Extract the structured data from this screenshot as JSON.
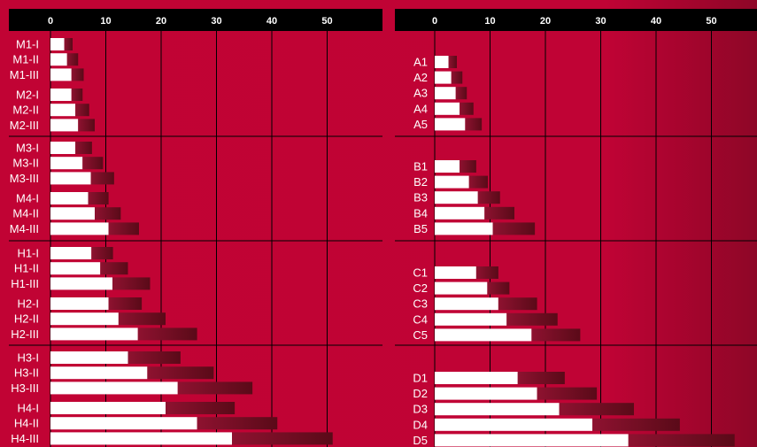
{
  "colors": {
    "background": "#c10334",
    "background_edge": "#8a0425",
    "axis_bar": "#000000",
    "tick_text": "#ffffff",
    "bar_main": "#ffffff",
    "bar_extension_start": "#8e1230",
    "bar_extension_end": "#5a0a18",
    "gridline": "#000000"
  },
  "chart_data": [
    {
      "type": "bar",
      "orientation": "horizontal",
      "stacked": true,
      "xlim": [
        0,
        60
      ],
      "ticks": [
        0,
        10,
        20,
        30,
        40,
        50
      ],
      "tick_labels": [
        "0",
        "10",
        "20",
        "30",
        "40",
        "50"
      ],
      "grid": true,
      "groups": [
        {
          "categories": [
            "M1-I",
            "M1-II",
            "M1-III"
          ],
          "base": [
            2.5,
            3,
            3.8
          ],
          "extension": [
            1.5,
            2,
            2.2
          ]
        },
        {
          "categories": [
            "M2-I",
            "M2-II",
            "M2-III"
          ],
          "base": [
            3.8,
            4.5,
            5
          ],
          "extension": [
            2,
            2.5,
            3
          ]
        },
        {
          "categories": [
            "M3-I",
            "M3-II",
            "M3-III"
          ],
          "base": [
            4.5,
            5.8,
            7.3
          ],
          "extension": [
            3,
            3.7,
            4.2
          ]
        },
        {
          "categories": [
            "M4-I",
            "M4-II",
            "M4-III"
          ],
          "base": [
            6.8,
            8,
            10.5
          ],
          "extension": [
            3.7,
            4.7,
            5.5
          ]
        },
        {
          "categories": [
            "H1-I",
            "H1-II",
            "H1-III"
          ],
          "base": [
            7.4,
            9,
            11.2
          ],
          "extension": [
            3.9,
            5,
            6.8
          ]
        },
        {
          "categories": [
            "H2-I",
            "H2-II",
            "H2-III"
          ],
          "base": [
            10.5,
            12.3,
            15.8
          ],
          "extension": [
            6,
            8.5,
            10.7
          ]
        },
        {
          "categories": [
            "H3-I",
            "H3-II",
            "H3-III"
          ],
          "base": [
            14,
            17.5,
            23
          ],
          "extension": [
            9.5,
            12,
            13.5
          ]
        },
        {
          "categories": [
            "H4-I",
            "H4-II",
            "H4-III"
          ],
          "base": [
            20.8,
            26.5,
            32.8
          ],
          "extension": [
            12.5,
            14.5,
            18.2
          ]
        }
      ]
    },
    {
      "type": "bar",
      "orientation": "horizontal",
      "stacked": true,
      "xlim": [
        0,
        60
      ],
      "ticks": [
        0,
        10,
        20,
        30,
        40,
        50
      ],
      "tick_labels": [
        "0",
        "10",
        "20",
        "30",
        "40",
        "50"
      ],
      "grid": true,
      "groups": [
        {
          "categories": [
            "A1",
            "A2",
            "A3",
            "A4",
            "A5"
          ],
          "base": [
            2.5,
            3,
            3.8,
            4.5,
            5.5
          ],
          "extension": [
            1.5,
            2,
            2,
            2.5,
            3
          ]
        },
        {
          "categories": [
            "B1",
            "B2",
            "B3",
            "B4",
            "B5"
          ],
          "base": [
            4.5,
            6.2,
            7.8,
            9,
            10.5
          ],
          "extension": [
            3,
            3.4,
            4,
            5.4,
            7.6
          ]
        },
        {
          "categories": [
            "C1",
            "C2",
            "C3",
            "C4",
            "C5"
          ],
          "base": [
            7.5,
            9.5,
            11.5,
            13,
            17.5
          ],
          "extension": [
            4,
            4,
            7,
            9.2,
            8.8
          ]
        },
        {
          "categories": [
            "D1",
            "D2",
            "D3",
            "D4",
            "D5"
          ],
          "base": [
            15,
            18.5,
            22.5,
            28.5,
            35
          ],
          "extension": [
            8.5,
            10.8,
            13.5,
            15.8,
            19.2
          ]
        }
      ]
    }
  ]
}
